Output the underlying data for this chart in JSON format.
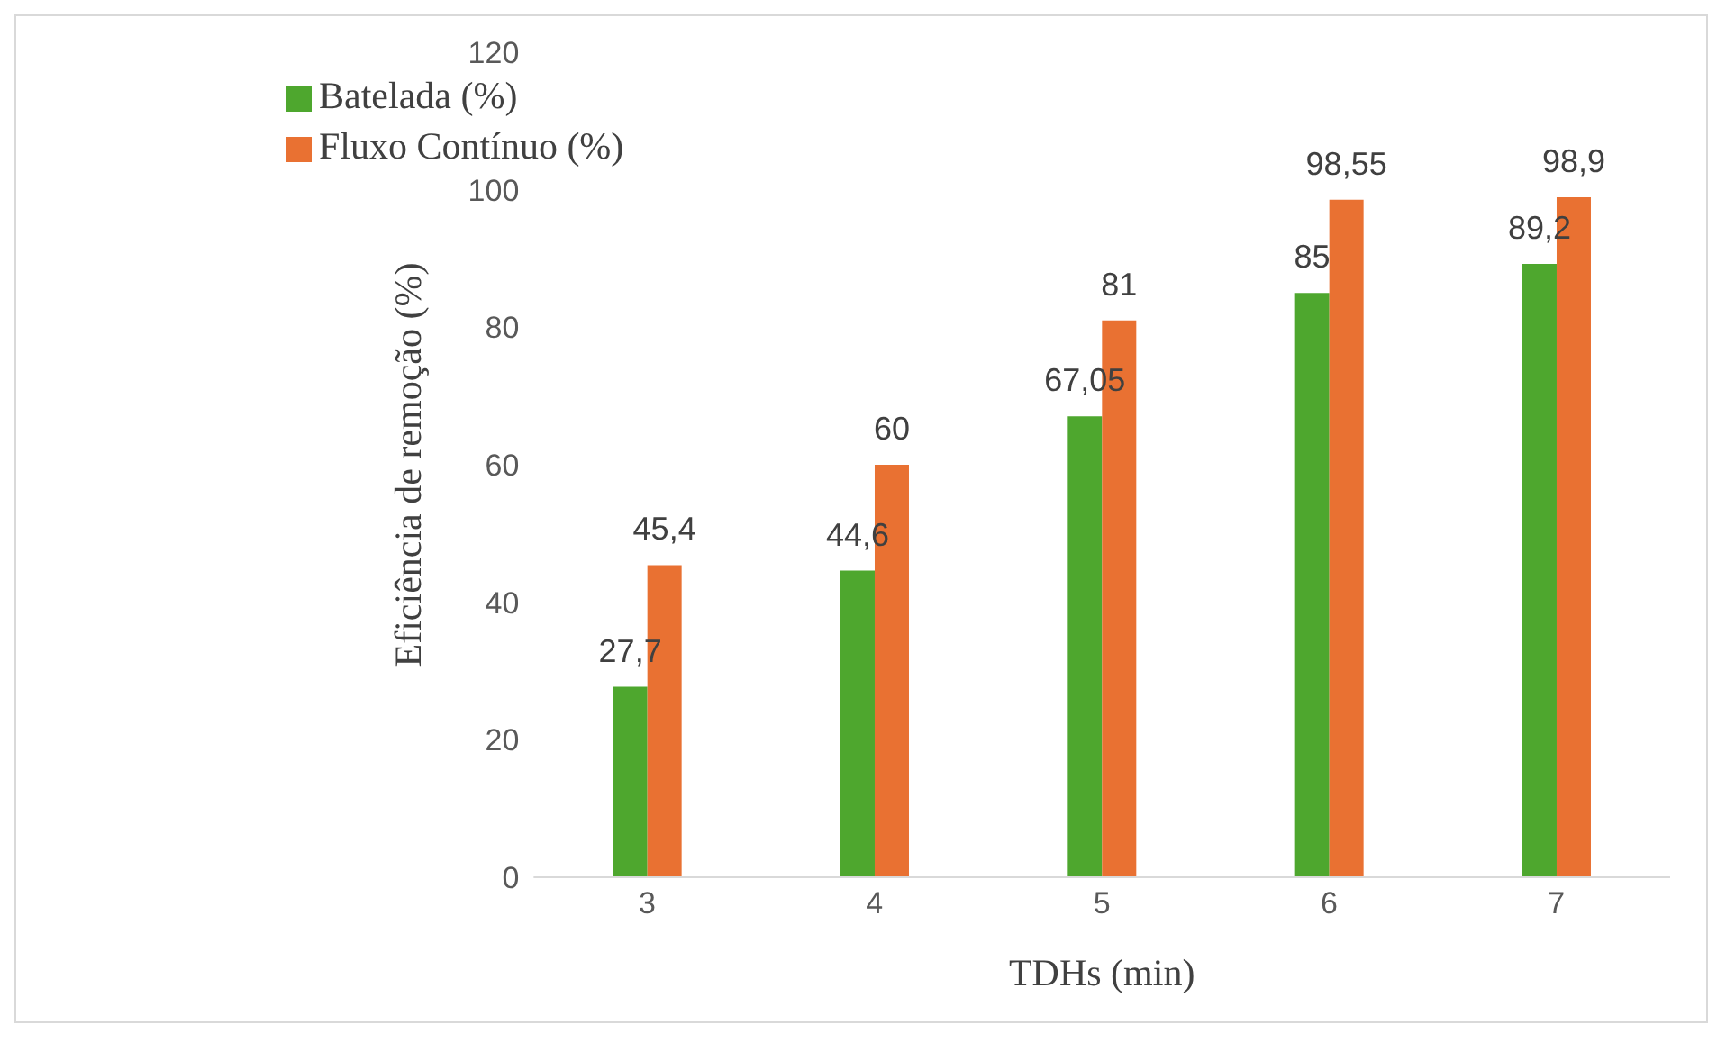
{
  "chart_data": {
    "type": "bar",
    "xlabel": "TDHs (min)",
    "ylabel": "Eficiência de remoção (%)",
    "categories": [
      "3",
      "4",
      "5",
      "6",
      "7"
    ],
    "series": [
      {
        "name": "Batelada (%)",
        "color": "#4ea72e",
        "values": [
          27.7,
          44.6,
          67.05,
          85,
          89.2
        ],
        "value_labels": [
          "27,7",
          "44,6",
          "67,05",
          "85",
          "89,2"
        ]
      },
      {
        "name": "Fluxo Contínuo (%)",
        "color": "#e97132",
        "values": [
          45.4,
          60,
          81,
          98.55,
          98.9
        ],
        "value_labels": [
          "45,4",
          "60",
          "81",
          "98,55",
          "98,9"
        ]
      }
    ],
    "ylim": [
      0,
      120
    ],
    "yticks": [
      0,
      20,
      40,
      60,
      80,
      100,
      120
    ],
    "grid": false,
    "legend": "top left"
  }
}
